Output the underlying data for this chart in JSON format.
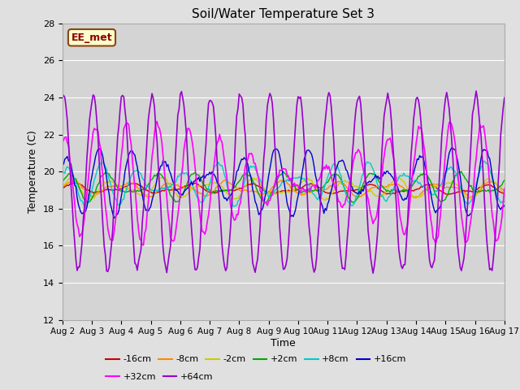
{
  "title": "Soil/Water Temperature Set 3",
  "xlabel": "Time",
  "ylabel": "Temperature (C)",
  "ylim": [
    12,
    28
  ],
  "yticks": [
    12,
    14,
    16,
    18,
    20,
    22,
    24,
    26,
    28
  ],
  "x_tick_labels": [
    "Aug 2",
    "Aug 3",
    "Aug 4",
    "Aug 5",
    "Aug 6",
    "Aug 7",
    "Aug 8",
    "Aug 9",
    "Aug 10",
    "Aug 11",
    "Aug 12",
    "Aug 13",
    "Aug 14",
    "Aug 15",
    "Aug 16",
    "Aug 17"
  ],
  "background_color": "#e0e0e0",
  "plot_bg_color": "#d4d4d4",
  "label_box_color": "#ffffcc",
  "label_box_edge": "#8b4513",
  "label_text": "EE_met",
  "label_text_color": "#8b0000",
  "series_colors": {
    "-16cm": "#cc0000",
    "-8cm": "#ff8800",
    "-2cm": "#cccc00",
    "+2cm": "#00aa00",
    "+8cm": "#00cccc",
    "+16cm": "#0000cc",
    "+32cm": "#ff00ff",
    "+64cm": "#9900cc"
  },
  "legend_order": [
    "-16cm",
    "-8cm",
    "-2cm",
    "+2cm",
    "+8cm",
    "+16cm",
    "+32cm",
    "+64cm"
  ]
}
